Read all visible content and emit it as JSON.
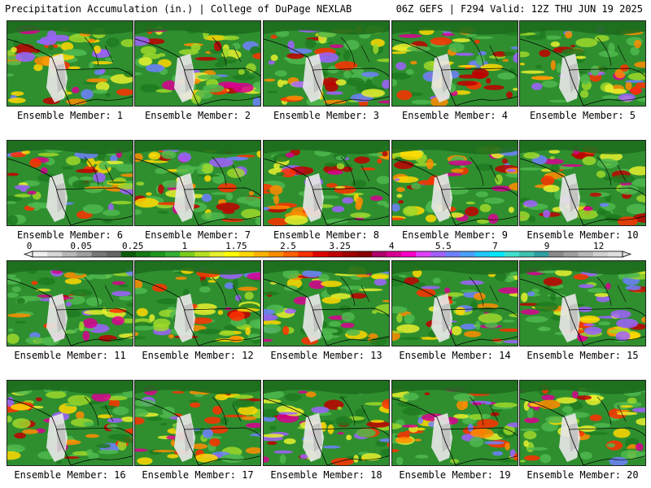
{
  "header": {
    "title_left": "Precipitation Accumulation (in.) | College of DuPage NEXLAB",
    "title_right": "06Z GEFS | F294 Valid: 12Z THU JUN 19 2025"
  },
  "members": [
    "Ensemble Member: 1",
    "Ensemble Member: 2",
    "Ensemble Member: 3",
    "Ensemble Member: 4",
    "Ensemble Member: 5",
    "Ensemble Member: 6",
    "Ensemble Member: 7",
    "Ensemble Member: 8",
    "Ensemble Member: 9",
    "Ensemble Member: 10",
    "Ensemble Member: 11",
    "Ensemble Member: 12",
    "Ensemble Member: 13",
    "Ensemble Member: 14",
    "Ensemble Member: 15",
    "Ensemble Member: 16",
    "Ensemble Member: 17",
    "Ensemble Member: 18",
    "Ensemble Member: 19",
    "Ensemble Member: 20"
  ],
  "colorbar": {
    "labels": [
      "0",
      "0.05",
      "0.25",
      "1",
      "1.75",
      "2.5",
      "3.25",
      "4",
      "5.5",
      "7",
      "9",
      "12"
    ],
    "colors": [
      "#f0f0f0",
      "#d8d8d8",
      "#b8b8b8",
      "#a0a0a0",
      "#787878",
      "#666666",
      "#0a5a0a",
      "#137a13",
      "#1e961e",
      "#35b035",
      "#7bcc1e",
      "#b6e023",
      "#e8f02e",
      "#ffff00",
      "#ffd800",
      "#ffb300",
      "#ff8c00",
      "#ff6000",
      "#ff3000",
      "#e00000",
      "#c00000",
      "#a00000",
      "#8a0000",
      "#b0006a",
      "#d80090",
      "#ff00c8",
      "#e040ff",
      "#a060ff",
      "#6e80ff",
      "#4aa0ff",
      "#20c8ff",
      "#00e8ff",
      "#40e0d0",
      "#40c0b0",
      "#30a0a0",
      "#8a8a8a",
      "#a0a0a0",
      "#b8b8b8",
      "#d0d0d0",
      "#e0e0e0"
    ]
  }
}
